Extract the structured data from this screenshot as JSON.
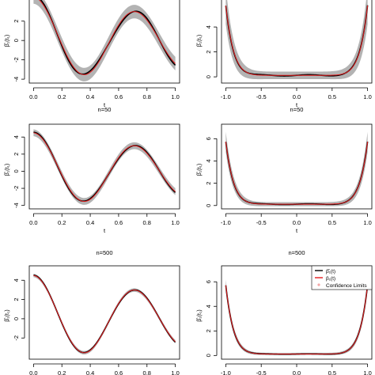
{
  "legend": {
    "entries": [
      {
        "label": "β̂₁(t)",
        "color": "#000000",
        "type": "line"
      },
      {
        "label": "β₁(t)",
        "color": "#e41a1c",
        "type": "line"
      },
      {
        "label": "Confidence Limits",
        "color": "#f4a6a6",
        "type": "point"
      }
    ]
  },
  "colors": {
    "estimate": "#000000",
    "truth": "#e41a1c",
    "band": "#b3b3b3",
    "axis": "#000000"
  },
  "chart_data": [
    {
      "id": "p11",
      "type": "line",
      "caption": "",
      "xlabel": "t",
      "ylabel": "β̂₁(t₁)",
      "xlim": [
        -0.03,
        1.03
      ],
      "ylim": [
        -4.4,
        5.0
      ],
      "xticks": [
        0.0,
        0.2,
        0.4,
        0.6,
        0.8,
        1.0
      ],
      "xticklabels": [
        "0.0",
        "0.2",
        "0.4",
        "0.6",
        "0.8",
        "1.0"
      ],
      "yticks": [
        -4,
        -2,
        0,
        2
      ],
      "yticklabels": [
        "-4",
        "-2",
        "0",
        "2"
      ],
      "truth": "sine",
      "band_halfwidth": 0.7
    },
    {
      "id": "p12",
      "type": "line",
      "caption": "",
      "xlabel": "t",
      "ylabel": "β̂₁(t₁)",
      "xlim": [
        -1.06,
        1.06
      ],
      "ylim": [
        -0.5,
        6.8
      ],
      "xticks": [
        -1.0,
        -0.5,
        0.0,
        0.5,
        1.0
      ],
      "xticklabels": [
        "-1.0",
        "-0.5",
        "0.0",
        "0.5",
        "1.0"
      ],
      "yticks": [
        0,
        2,
        4
      ],
      "yticklabels": [
        "0",
        "2",
        "4"
      ],
      "truth": "bowl",
      "band_halfwidth": 0.5
    },
    {
      "id": "p21",
      "type": "line",
      "caption": "n=50",
      "xlabel": "t",
      "ylabel": "β̂₁(t₁)",
      "xlim": [
        -0.03,
        1.03
      ],
      "ylim": [
        -4.4,
        5.5
      ],
      "xticks": [
        0.0,
        0.2,
        0.4,
        0.6,
        0.8,
        1.0
      ],
      "xticklabels": [
        "0.0",
        "0.2",
        "0.4",
        "0.6",
        "0.8",
        "1.0"
      ],
      "yticks": [
        -4,
        -2,
        0,
        2,
        4
      ],
      "yticklabels": [
        "-4",
        "-2",
        "0",
        "2",
        "4"
      ],
      "truth": "sine",
      "band_halfwidth": 0.4
    },
    {
      "id": "p22",
      "type": "line",
      "caption": "n=50",
      "xlabel": "t",
      "ylabel": "β̂₁(t₁)",
      "xlim": [
        -1.06,
        1.06
      ],
      "ylim": [
        -0.3,
        7.3
      ],
      "xticks": [
        -1.0,
        -0.5,
        0.0,
        0.5,
        1.0
      ],
      "xticklabels": [
        "-1.0",
        "-0.5",
        "0.0",
        "0.5",
        "1.0"
      ],
      "yticks": [
        0,
        2,
        4,
        6
      ],
      "yticklabels": [
        "0",
        "2",
        "4",
        "6"
      ],
      "truth": "bowl",
      "band_halfwidth": 0.3
    },
    {
      "id": "p31",
      "type": "line",
      "caption": "n=500",
      "xlabel": "",
      "ylabel": "β̂₁(t₁)",
      "xlim": [
        -0.03,
        1.03
      ],
      "ylim": [
        -4.2,
        5.5
      ],
      "xticks": [
        0.0,
        0.2,
        0.4,
        0.6,
        0.8,
        1.0
      ],
      "xticklabels": [
        "0.0",
        "0.2",
        "0.4",
        "0.6",
        "0.8",
        "1.0"
      ],
      "yticks": [
        -2,
        0,
        2,
        4
      ],
      "yticklabels": [
        "-2",
        "0",
        "2",
        "4"
      ],
      "truth": "sine",
      "band_halfwidth": 0.18
    },
    {
      "id": "p32",
      "type": "line",
      "caption": "n=500",
      "xlabel": "",
      "ylabel": "β̂₁(t₁)",
      "xlim": [
        -1.06,
        1.06
      ],
      "ylim": [
        -0.3,
        7.3
      ],
      "xticks": [
        -1.0,
        -0.5,
        0.0,
        0.5,
        1.0
      ],
      "xticklabels": [
        "-1.0",
        "-0.5",
        "0.0",
        "0.5",
        "1.0"
      ],
      "yticks": [
        0,
        2,
        4,
        6
      ],
      "yticklabels": [
        "0",
        "2",
        "4",
        "6"
      ],
      "truth": "bowl",
      "band_halfwidth": 0.15
    }
  ]
}
